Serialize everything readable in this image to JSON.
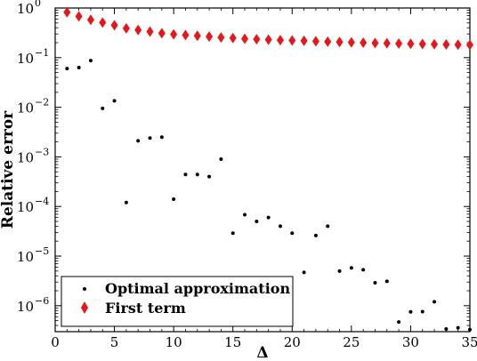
{
  "chart_data": {
    "type": "scatter",
    "xlabel": "Δ",
    "ylabel": "Relative error",
    "xlim": [
      0,
      35
    ],
    "ylim": [
      3e-07,
      1
    ],
    "yscale": "log",
    "x_ticks": [
      0,
      5,
      10,
      15,
      20,
      25,
      30,
      35
    ],
    "y_ticks": [
      {
        "base": "10",
        "exp": "0",
        "value": 1
      },
      {
        "base": "10",
        "exp": "−1",
        "value": 0.1
      },
      {
        "base": "10",
        "exp": "−2",
        "value": 0.01
      },
      {
        "base": "10",
        "exp": "−3",
        "value": 0.001
      },
      {
        "base": "10",
        "exp": "−4",
        "value": 0.0001
      },
      {
        "base": "10",
        "exp": "−5",
        "value": 1e-05
      },
      {
        "base": "10",
        "exp": "−6",
        "value": 1e-06
      }
    ],
    "grid": false,
    "legend_position": "lower-left",
    "series": [
      {
        "name": "Optimal approximation",
        "marker": "dot",
        "color": "#000000",
        "x": [
          1,
          2,
          3,
          4,
          5,
          6,
          7,
          8,
          9,
          10,
          11,
          12,
          13,
          14,
          15,
          16,
          17,
          18,
          19,
          20,
          21,
          22,
          23,
          24,
          25,
          26,
          27,
          28,
          29,
          30,
          31,
          32,
          33,
          34,
          35
        ],
        "y": [
          0.06,
          0.063,
          0.087,
          0.0095,
          0.0135,
          0.00012,
          0.0021,
          0.0024,
          0.0025,
          0.00014,
          0.00044,
          0.00044,
          0.0004,
          0.0009,
          2.9e-05,
          6.8e-05,
          5e-05,
          6e-05,
          4e-05,
          2.9e-05,
          4.7e-06,
          2.6e-05,
          4e-05,
          5e-06,
          5.8e-06,
          5.3e-06,
          2.9e-06,
          3.1e-06,
          4.7e-07,
          7.5e-07,
          7.6e-07,
          1.2e-06,
          3.4e-07,
          3.6e-07,
          3.3e-07
        ]
      },
      {
        "name": "First term",
        "marker": "diamond",
        "color": "#e8151b",
        "x": [
          1,
          2,
          3,
          4,
          5,
          6,
          7,
          8,
          9,
          10,
          11,
          12,
          13,
          14,
          15,
          16,
          17,
          18,
          19,
          20,
          21,
          22,
          23,
          24,
          25,
          26,
          27,
          28,
          29,
          30,
          31,
          32,
          33,
          34,
          35
        ],
        "y": [
          0.82,
          0.68,
          0.58,
          0.51,
          0.45,
          0.39,
          0.36,
          0.335,
          0.31,
          0.295,
          0.285,
          0.275,
          0.265,
          0.255,
          0.248,
          0.24,
          0.235,
          0.23,
          0.225,
          0.222,
          0.218,
          0.214,
          0.21,
          0.206,
          0.203,
          0.2,
          0.197,
          0.195,
          0.192,
          0.19,
          0.188,
          0.186,
          0.184,
          0.182,
          0.18
        ]
      }
    ]
  }
}
